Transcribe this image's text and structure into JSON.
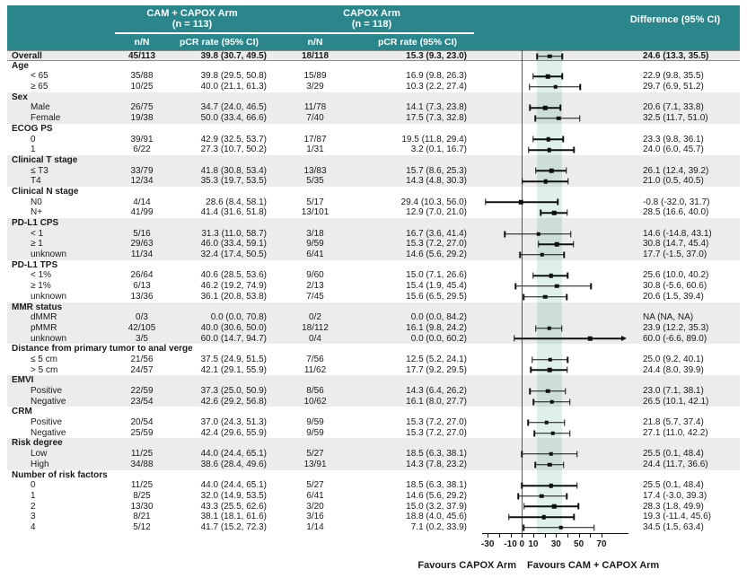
{
  "colors": {
    "teal": "#2b868c",
    "stripe": "#ececec",
    "band": "#def0e8",
    "ink": "#101010"
  },
  "chart_data": {
    "type": "forest",
    "columns": {
      "arm1_title": "CAM + CAPOX Arm",
      "arm1_n": "(n = 113)",
      "arm2_title": "CAPOX Arm",
      "arm2_n": "(n = 118)",
      "diff": "Difference (95% CI)",
      "nN": "n/N",
      "pcr": "pCR rate (95% CI)"
    },
    "overall": {
      "label": "Overall",
      "nN1": "45/113",
      "pcr1": "39.8 (30.7, 49.5)",
      "nN2": "18/118",
      "pcr2": "15.3 (9.3, 23.0)",
      "diff": "24.6 (13.3, 35.5)",
      "ci": [
        24.6,
        13.3,
        35.5
      ]
    },
    "groups": [
      {
        "label": "Age",
        "items": [
          {
            "label": "< 65",
            "nN1": "35/88",
            "pcr1": "39.8 (29.5, 50.8)",
            "nN2": "15/89",
            "pcr2": "16.9 (9.8, 26.3)",
            "diff": "22.9 (9.8, 35.5)",
            "ci": [
              22.9,
              9.8,
              35.5
            ]
          },
          {
            "label": "≥ 65",
            "nN1": "10/25",
            "pcr1": "40.0 (21.1, 61.3)",
            "nN2": "3/29",
            "pcr2": "10.3 (2.2, 27.4)",
            "diff": "29.7 (6.9, 51.2)",
            "ci": [
              29.7,
              6.9,
              51.2
            ]
          }
        ]
      },
      {
        "label": "Sex",
        "items": [
          {
            "label": "Male",
            "nN1": "26/75",
            "pcr1": "34.7 (24.0, 46.5)",
            "nN2": "11/78",
            "pcr2": "14.1 (7.3, 23.8)",
            "diff": "20.6 (7.1, 33.8)",
            "ci": [
              20.6,
              7.1,
              33.8
            ]
          },
          {
            "label": "Female",
            "nN1": "19/38",
            "pcr1": "50.0 (33.4, 66.6)",
            "nN2": "7/40",
            "pcr2": "17.5 (7.3, 32.8)",
            "diff": "32.5 (11.7, 51.0)",
            "ci": [
              32.5,
              11.7,
              51.0
            ]
          }
        ]
      },
      {
        "label": "ECOG PS",
        "items": [
          {
            "label": "0",
            "nN1": "39/91",
            "pcr1": "42.9 (32.5, 53.7)",
            "nN2": "17/87",
            "pcr2": "19.5 (11.8, 29.4)",
            "diff": "23.3 (9.8, 36.1)",
            "ci": [
              23.3,
              9.8,
              36.1
            ]
          },
          {
            "label": "1",
            "nN1": "6/22",
            "pcr1": "27.3 (10.7, 50.2)",
            "nN2": "1/31",
            "pcr2": "3.2 (0.1, 16.7)",
            "diff": "24.0 (6.0, 45.7)",
            "ci": [
              24.0,
              6.0,
              45.7
            ]
          }
        ]
      },
      {
        "label": "Clinical T stage",
        "items": [
          {
            "label": "≤ T3",
            "nN1": "33/79",
            "pcr1": "41.8 (30.8, 53.4)",
            "nN2": "13/83",
            "pcr2": "15.7 (8.6, 25.3)",
            "diff": "26.1 (12.4, 39.2)",
            "ci": [
              26.1,
              12.4,
              39.2
            ]
          },
          {
            "label": "T4",
            "nN1": "12/34",
            "pcr1": "35.3 (19.7, 53.5)",
            "nN2": "5/35",
            "pcr2": "14.3 (4.8, 30.3)",
            "diff": "21.0 (0.5, 40.5)",
            "ci": [
              21.0,
              0.5,
              40.5
            ]
          }
        ]
      },
      {
        "label": "Clinical N stage",
        "items": [
          {
            "label": "N0",
            "nN1": "4/14",
            "pcr1": "28.6 (8.4, 58.1)",
            "nN2": "5/17",
            "pcr2": "29.4 (10.3, 56.0)",
            "diff": "-0.8 (-32.0, 31.7)",
            "ci": [
              -0.8,
              -32.0,
              31.7
            ]
          },
          {
            "label": "N+",
            "nN1": "41/99",
            "pcr1": "41.4 (31.6, 51.8)",
            "nN2": "13/101",
            "pcr2": "12.9 (7.0, 21.0)",
            "diff": "28.5 (16.6, 40.0)",
            "ci": [
              28.5,
              16.6,
              40.0
            ]
          }
        ]
      },
      {
        "label": "PD-L1 CPS",
        "items": [
          {
            "label": "< 1",
            "nN1": "5/16",
            "pcr1": "31.3 (11.0, 58.7)",
            "nN2": "3/18",
            "pcr2": "16.7 (3.6, 41.4)",
            "diff": "14.6 (-14.8, 43.1)",
            "ci": [
              14.6,
              -14.8,
              43.1
            ]
          },
          {
            "label": "≥ 1",
            "nN1": "29/63",
            "pcr1": "46.0 (33.4, 59.1)",
            "nN2": "9/59",
            "pcr2": "15.3 (7.2, 27.0)",
            "diff": "30.8 (14.7, 45.4)",
            "ci": [
              30.8,
              14.7,
              45.4
            ]
          },
          {
            "label": "unknown",
            "nN1": "11/34",
            "pcr1": "32.4 (17.4, 50.5)",
            "nN2": "6/41",
            "pcr2": "14.6 (5.6, 29.2)",
            "diff": "17.7 (-1.5, 37.0)",
            "ci": [
              17.7,
              -1.5,
              37.0
            ]
          }
        ]
      },
      {
        "label": "PD-L1 TPS",
        "items": [
          {
            "label": "< 1%",
            "nN1": "26/64",
            "pcr1": "40.6 (28.5, 53.6)",
            "nN2": "9/60",
            "pcr2": "15.0 (7.1, 26.6)",
            "diff": "25.6 (10.0, 40.2)",
            "ci": [
              25.6,
              10.0,
              40.2
            ]
          },
          {
            "label": "≥ 1%",
            "nN1": "6/13",
            "pcr1": "46.2 (19.2, 74.9)",
            "nN2": "2/13",
            "pcr2": "15.4 (1.9, 45.4)",
            "diff": "30.8 (-5.6, 60.6)",
            "ci": [
              30.8,
              -5.6,
              60.6
            ]
          },
          {
            "label": "unknown",
            "nN1": "13/36",
            "pcr1": "36.1 (20.8, 53.8)",
            "nN2": "7/45",
            "pcr2": "15.6 (6.5, 29.5)",
            "diff": "20.6 (1.5, 39.4)",
            "ci": [
              20.6,
              1.5,
              39.4
            ]
          }
        ]
      },
      {
        "label": "MMR status",
        "items": [
          {
            "label": "dMMR",
            "nN1": "0/3",
            "pcr1": "0.0 (0.0, 70.8)",
            "nN2": "0/2",
            "pcr2": "0.0 (0.0, 84.2)",
            "diff": "NA (NA, NA)",
            "ci": null
          },
          {
            "label": "pMMR",
            "nN1": "42/105",
            "pcr1": "40.0 (30.6, 50.0)",
            "nN2": "18/112",
            "pcr2": "16.1 (9.8, 24.2)",
            "diff": "23.9 (12.2, 35.3)",
            "ci": [
              23.9,
              12.2,
              35.3
            ]
          },
          {
            "label": "unknown",
            "nN1": "3/5",
            "pcr1": "60.0 (14.7, 94.7)",
            "nN2": "0/4",
            "pcr2": "0.0 (0.0, 60.2)",
            "diff": "60.0 (-6.6, 89.0)",
            "ci": [
              60.0,
              -6.6,
              89.0
            ],
            "arrow": true
          }
        ]
      },
      {
        "label": "Distance from primary tumor to anal verge",
        "items": [
          {
            "label": "≤ 5 cm",
            "nN1": "21/56",
            "pcr1": "37.5 (24.9, 51.5)",
            "nN2": "7/56",
            "pcr2": "12.5 (5.2, 24.1)",
            "diff": "25.0 (9.2, 40.1)",
            "ci": [
              25.0,
              9.2,
              40.1
            ]
          },
          {
            "label": "> 5 cm",
            "nN1": "24/57",
            "pcr1": "42.1 (29.1, 55.9)",
            "nN2": "11/62",
            "pcr2": "17.7 (9.2, 29.5)",
            "diff": "24.4 (8.0, 39.9)",
            "ci": [
              24.4,
              8.0,
              39.9
            ]
          }
        ]
      },
      {
        "label": "EMVI",
        "items": [
          {
            "label": "Positive",
            "nN1": "22/59",
            "pcr1": "37.3 (25.0, 50.9)",
            "nN2": "8/56",
            "pcr2": "14.3 (6.4, 26.2)",
            "diff": "23.0 (7.1, 38.1)",
            "ci": [
              23.0,
              7.1,
              38.1
            ]
          },
          {
            "label": "Negative",
            "nN1": "23/54",
            "pcr1": "42.6 (29.2, 56.8)",
            "nN2": "10/62",
            "pcr2": "16.1 (8.0, 27.7)",
            "diff": "26.5 (10.1, 42.1)",
            "ci": [
              26.5,
              10.1,
              42.1
            ]
          }
        ]
      },
      {
        "label": "CRM",
        "items": [
          {
            "label": "Positive",
            "nN1": "20/54",
            "pcr1": "37.0 (24.3, 51.3)",
            "nN2": "9/59",
            "pcr2": "15.3 (7.2, 27.0)",
            "diff": "21.8 (5.7, 37.4)",
            "ci": [
              21.8,
              5.7,
              37.4
            ]
          },
          {
            "label": "Negative",
            "nN1": "25/59",
            "pcr1": "42.4 (29.6, 55.9)",
            "nN2": "9/59",
            "pcr2": "15.3 (7.2, 27.0)",
            "diff": "27.1 (11.0, 42.2)",
            "ci": [
              27.1,
              11.0,
              42.2
            ]
          }
        ]
      },
      {
        "label": "Risk degree",
        "items": [
          {
            "label": "Low",
            "nN1": "11/25",
            "pcr1": "44.0 (24.4, 65.1)",
            "nN2": "5/27",
            "pcr2": "18.5 (6.3, 38.1)",
            "diff": "25.5 (0.1, 48.4)",
            "ci": [
              25.5,
              0.1,
              48.4
            ]
          },
          {
            "label": "High",
            "nN1": "34/88",
            "pcr1": "38.6 (28.4, 49.6)",
            "nN2": "13/91",
            "pcr2": "14.3 (7.8, 23.2)",
            "diff": "24.4 (11.7, 36.6)",
            "ci": [
              24.4,
              11.7,
              36.6
            ]
          }
        ]
      },
      {
        "label": "Number of risk factors",
        "items": [
          {
            "label": "0",
            "nN1": "11/25",
            "pcr1": "44.0 (24.4, 65.1)",
            "nN2": "5/27",
            "pcr2": "18.5 (6.3, 38.1)",
            "diff": "25.5 (0.1, 48.4)",
            "ci": [
              25.5,
              0.1,
              48.4
            ]
          },
          {
            "label": "1",
            "nN1": "8/25",
            "pcr1": "32.0 (14.9, 53.5)",
            "nN2": "6/41",
            "pcr2": "14.6 (5.6, 29.2)",
            "diff": "17.4 (-3.0, 39.3)",
            "ci": [
              17.4,
              -3.0,
              39.3
            ]
          },
          {
            "label": "2",
            "nN1": "13/30",
            "pcr1": "43.3 (25.5, 62.6)",
            "nN2": "3/20",
            "pcr2": "15.0 (3.2, 37.9)",
            "diff": "28.3 (1.8, 49.9)",
            "ci": [
              28.3,
              1.8,
              49.9
            ]
          },
          {
            "label": "3",
            "nN1": "8/21",
            "pcr1": "38.1 (18.1, 61.6)",
            "nN2": "3/16",
            "pcr2": "18.8 (4.0, 45.6)",
            "diff": "19.3 (-11.4, 45.6)",
            "ci": [
              19.3,
              -11.4,
              45.6
            ]
          },
          {
            "label": "4",
            "nN1": "5/12",
            "pcr1": "41.7 (15.2, 72.3)",
            "nN2": "1/14",
            "pcr2": "7.1 (0.2, 33.9)",
            "diff": "34.5 (1.5, 63.4)",
            "ci": [
              34.5,
              1.5,
              63.4
            ]
          }
        ]
      }
    ],
    "axis": {
      "min": -42,
      "max": 100,
      "ticks": [
        -30,
        -20,
        -10,
        0,
        10,
        20,
        30,
        40,
        50,
        60,
        70
      ],
      "labeled_ticks": [
        -30,
        -10,
        0,
        10,
        30,
        50,
        70
      ]
    },
    "shaded_band": [
      13.3,
      35.5
    ],
    "footer": {
      "left": "Favours CAPOX Arm",
      "right": "Favours CAM + CAPOX Arm"
    }
  }
}
